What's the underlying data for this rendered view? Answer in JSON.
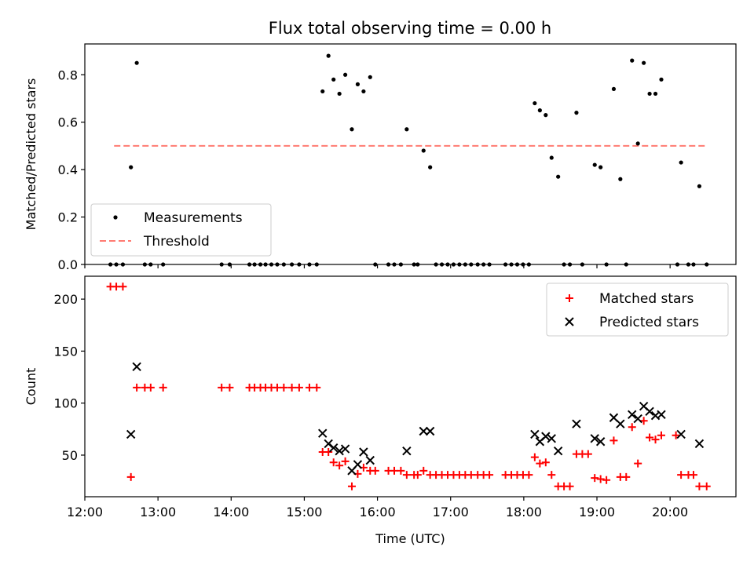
{
  "figure": {
    "title": "Flux total observing time = 0.00 h"
  },
  "chart_data": [
    {
      "type": "scatter",
      "panel": "top",
      "ylabel": "Matched/Predicted stars",
      "xlabel": "",
      "xlim": [
        12.0,
        20.9
      ],
      "ylim": [
        0.0,
        0.93
      ],
      "yticks": [
        0.0,
        0.2,
        0.4,
        0.6,
        0.8
      ],
      "ytick_labels": [
        "0.0",
        "0.2",
        "0.4",
        "0.6",
        "0.8"
      ],
      "grid": false,
      "legend": "lower-left",
      "threshold": {
        "name": "Threshold",
        "value": 0.5,
        "x_range": [
          12.4,
          20.5
        ],
        "color": "#ff7b72"
      },
      "series": [
        {
          "name": "Measurements",
          "marker": "dot",
          "color": "#000000",
          "points": [
            [
              12.35,
              0
            ],
            [
              12.43,
              0
            ],
            [
              12.52,
              0
            ],
            [
              12.63,
              0.41
            ],
            [
              12.71,
              0.85
            ],
            [
              12.82,
              0
            ],
            [
              12.9,
              0
            ],
            [
              13.07,
              0
            ],
            [
              13.87,
              0
            ],
            [
              13.98,
              0
            ],
            [
              14.25,
              0
            ],
            [
              14.32,
              0
            ],
            [
              14.4,
              0
            ],
            [
              14.47,
              0
            ],
            [
              14.55,
              0
            ],
            [
              14.63,
              0
            ],
            [
              14.72,
              0
            ],
            [
              14.83,
              0
            ],
            [
              14.93,
              0
            ],
            [
              15.07,
              0
            ],
            [
              15.17,
              0
            ],
            [
              15.25,
              0.73
            ],
            [
              15.33,
              0.88
            ],
            [
              15.4,
              0.78
            ],
            [
              15.48,
              0.72
            ],
            [
              15.56,
              0.8
            ],
            [
              15.65,
              0.57
            ],
            [
              15.73,
              0.76
            ],
            [
              15.81,
              0.73
            ],
            [
              15.9,
              0.79
            ],
            [
              15.97,
              0
            ],
            [
              16.15,
              0
            ],
            [
              16.23,
              0
            ],
            [
              16.32,
              0
            ],
            [
              16.4,
              0.57
            ],
            [
              16.5,
              0
            ],
            [
              16.55,
              0
            ],
            [
              16.63,
              0.48
            ],
            [
              16.72,
              0.41
            ],
            [
              16.8,
              0
            ],
            [
              16.88,
              0
            ],
            [
              16.96,
              0
            ],
            [
              17.04,
              0
            ],
            [
              17.12,
              0
            ],
            [
              17.2,
              0
            ],
            [
              17.28,
              0
            ],
            [
              17.37,
              0
            ],
            [
              17.45,
              0
            ],
            [
              17.53,
              0
            ],
            [
              17.75,
              0
            ],
            [
              17.83,
              0
            ],
            [
              17.91,
              0
            ],
            [
              17.99,
              0
            ],
            [
              18.07,
              0
            ],
            [
              18.15,
              0.68
            ],
            [
              18.22,
              0.65
            ],
            [
              18.3,
              0.63
            ],
            [
              18.38,
              0.45
            ],
            [
              18.47,
              0.37
            ],
            [
              18.55,
              0
            ],
            [
              18.63,
              0
            ],
            [
              18.72,
              0.64
            ],
            [
              18.8,
              0
            ],
            [
              18.97,
              0.42
            ],
            [
              19.05,
              0.41
            ],
            [
              19.13,
              0
            ],
            [
              19.23,
              0.74
            ],
            [
              19.32,
              0.36
            ],
            [
              19.4,
              0
            ],
            [
              19.48,
              0.86
            ],
            [
              19.56,
              0.51
            ],
            [
              19.64,
              0.85
            ],
            [
              19.72,
              0.72
            ],
            [
              19.8,
              0.72
            ],
            [
              19.88,
              0.78
            ],
            [
              20.1,
              0
            ],
            [
              20.15,
              0.43
            ],
            [
              20.25,
              0
            ],
            [
              20.32,
              0
            ],
            [
              20.4,
              0.33
            ],
            [
              20.5,
              0
            ]
          ]
        }
      ]
    },
    {
      "type": "scatter",
      "panel": "bottom",
      "ylabel": "Count",
      "xlabel": "Time (UTC)",
      "xlim": [
        12.0,
        20.9
      ],
      "ylim": [
        10,
        222
      ],
      "yticks": [
        50,
        100,
        150,
        200
      ],
      "ytick_labels": [
        "50",
        "100",
        "150",
        "200"
      ],
      "xticks": [
        12,
        13,
        14,
        15,
        16,
        17,
        18,
        19,
        20
      ],
      "xtick_labels": [
        "12:00",
        "13:00",
        "14:00",
        "15:00",
        "16:00",
        "17:00",
        "18:00",
        "19:00",
        "20:00"
      ],
      "grid": false,
      "legend": "top-right",
      "series": [
        {
          "name": "Matched stars",
          "marker": "plus",
          "color": "#ff0000",
          "points": [
            [
              12.35,
              212
            ],
            [
              12.43,
              212
            ],
            [
              12.52,
              212
            ],
            [
              12.63,
              29
            ],
            [
              12.71,
              115
            ],
            [
              12.82,
              115
            ],
            [
              12.9,
              115
            ],
            [
              13.07,
              115
            ],
            [
              13.87,
              115
            ],
            [
              13.98,
              115
            ],
            [
              14.25,
              115
            ],
            [
              14.32,
              115
            ],
            [
              14.4,
              115
            ],
            [
              14.47,
              115
            ],
            [
              14.55,
              115
            ],
            [
              14.63,
              115
            ],
            [
              14.72,
              115
            ],
            [
              14.83,
              115
            ],
            [
              14.93,
              115
            ],
            [
              15.07,
              115
            ],
            [
              15.17,
              115
            ],
            [
              15.25,
              53
            ],
            [
              15.33,
              53
            ],
            [
              15.4,
              43
            ],
            [
              15.48,
              40
            ],
            [
              15.56,
              44
            ],
            [
              15.65,
              20
            ],
            [
              15.73,
              32
            ],
            [
              15.81,
              38
            ],
            [
              15.9,
              35
            ],
            [
              15.97,
              35
            ],
            [
              16.15,
              35
            ],
            [
              16.23,
              35
            ],
            [
              16.32,
              35
            ],
            [
              16.4,
              31
            ],
            [
              16.5,
              31
            ],
            [
              16.55,
              31
            ],
            [
              16.63,
              35
            ],
            [
              16.72,
              31
            ],
            [
              16.8,
              31
            ],
            [
              16.88,
              31
            ],
            [
              16.96,
              31
            ],
            [
              17.04,
              31
            ],
            [
              17.12,
              31
            ],
            [
              17.2,
              31
            ],
            [
              17.28,
              31
            ],
            [
              17.37,
              31
            ],
            [
              17.45,
              31
            ],
            [
              17.53,
              31
            ],
            [
              17.75,
              31
            ],
            [
              17.83,
              31
            ],
            [
              17.91,
              31
            ],
            [
              17.99,
              31
            ],
            [
              18.07,
              31
            ],
            [
              18.15,
              48
            ],
            [
              18.22,
              42
            ],
            [
              18.3,
              43
            ],
            [
              18.38,
              31
            ],
            [
              18.47,
              20
            ],
            [
              18.55,
              20
            ],
            [
              18.63,
              20
            ],
            [
              18.72,
              51
            ],
            [
              18.8,
              51
            ],
            [
              18.88,
              51
            ],
            [
              18.97,
              28
            ],
            [
              19.05,
              27
            ],
            [
              19.13,
              26
            ],
            [
              19.23,
              64
            ],
            [
              19.32,
              29
            ],
            [
              19.4,
              29
            ],
            [
              19.48,
              77
            ],
            [
              19.56,
              42
            ],
            [
              19.64,
              83
            ],
            [
              19.72,
              67
            ],
            [
              19.8,
              65
            ],
            [
              19.88,
              69
            ],
            [
              20.08,
              69
            ],
            [
              20.15,
              31
            ],
            [
              20.25,
              31
            ],
            [
              20.32,
              31
            ],
            [
              20.4,
              20
            ],
            [
              20.5,
              20
            ]
          ]
        },
        {
          "name": "Predicted stars",
          "marker": "x",
          "color": "#000000",
          "points": [
            [
              12.63,
              70
            ],
            [
              12.71,
              135
            ],
            [
              15.25,
              71
            ],
            [
              15.33,
              61
            ],
            [
              15.4,
              57
            ],
            [
              15.48,
              54
            ],
            [
              15.56,
              56
            ],
            [
              15.65,
              35
            ],
            [
              15.73,
              41
            ],
            [
              15.81,
              53
            ],
            [
              15.9,
              45
            ],
            [
              16.4,
              54
            ],
            [
              16.63,
              73
            ],
            [
              16.72,
              73
            ],
            [
              18.15,
              70
            ],
            [
              18.22,
              63
            ],
            [
              18.3,
              68
            ],
            [
              18.38,
              66
            ],
            [
              18.47,
              54
            ],
            [
              18.72,
              80
            ],
            [
              18.97,
              66
            ],
            [
              19.05,
              63
            ],
            [
              19.23,
              86
            ],
            [
              19.32,
              80
            ],
            [
              19.48,
              89
            ],
            [
              19.56,
              85
            ],
            [
              19.64,
              97
            ],
            [
              19.72,
              92
            ],
            [
              19.8,
              88
            ],
            [
              19.88,
              89
            ],
            [
              20.15,
              70
            ],
            [
              20.4,
              61
            ]
          ]
        }
      ]
    }
  ]
}
